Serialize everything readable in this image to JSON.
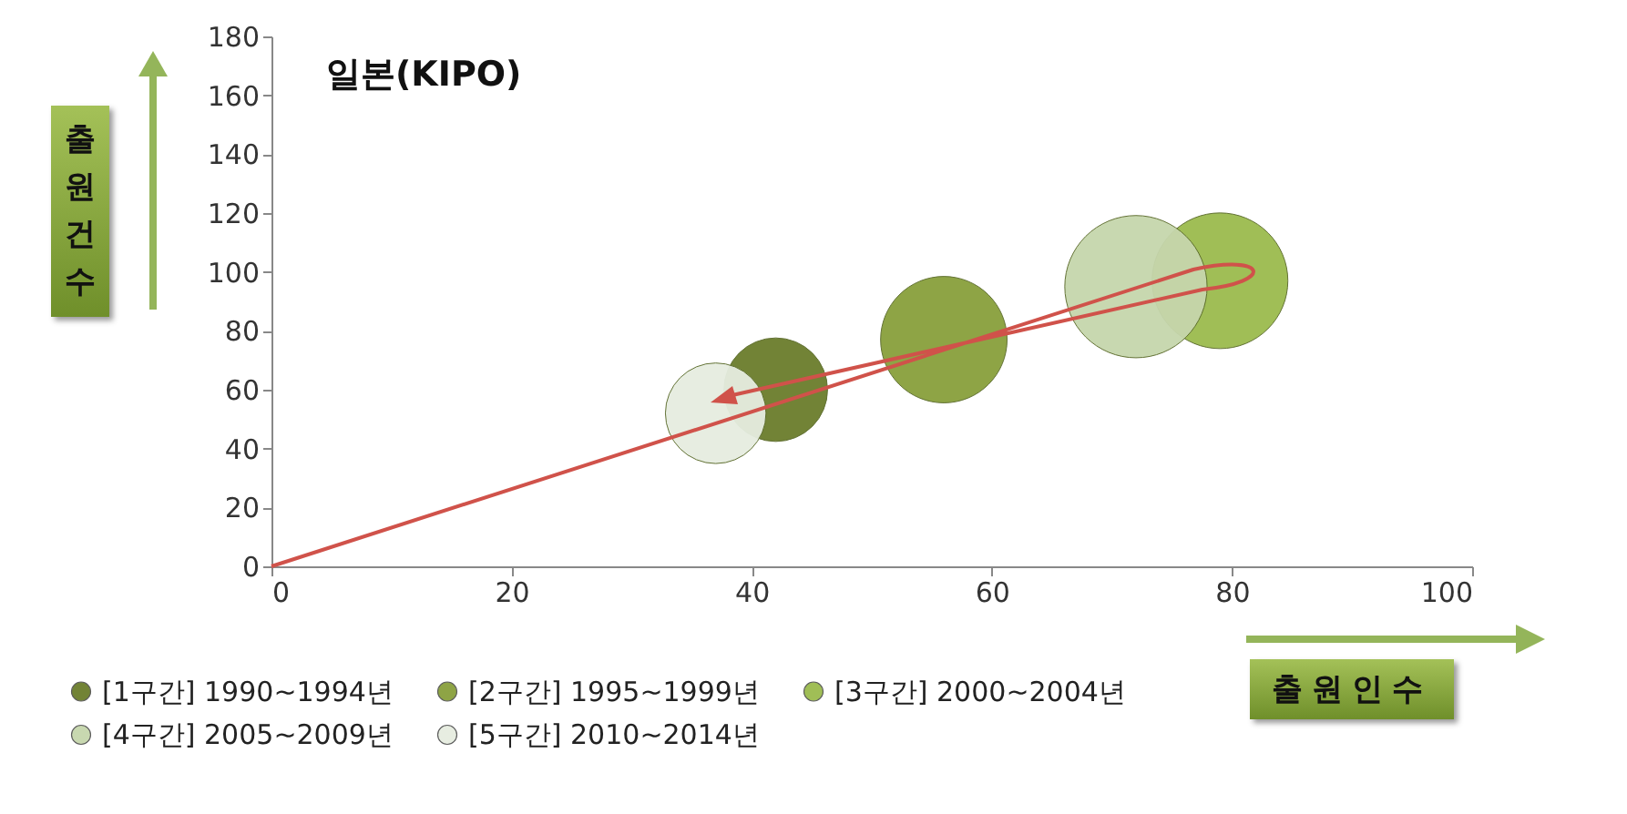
{
  "chart_data": {
    "type": "bubble",
    "title": "일본(KIPO)",
    "xlabel": "출원인수",
    "ylabel": "출원건수",
    "xlim": [
      0,
      100
    ],
    "xticks": [
      0,
      20,
      40,
      60,
      80,
      100
    ],
    "ylim": [
      0,
      180
    ],
    "yticks": [
      0,
      20,
      40,
      60,
      80,
      100,
      120,
      140,
      160,
      180
    ],
    "grid": false,
    "legend": "bottom",
    "series": [
      {
        "name": "[1구간] 1990~1994년",
        "color": "#6b7d2c",
        "x": [
          42
        ],
        "values": [
          60
        ],
        "sizes": [
          0.53
        ]
      },
      {
        "name": "[2구간] 1995~1999년",
        "color": "#88a03c",
        "x": [
          56
        ],
        "values": [
          77
        ],
        "sizes": [
          0.79
        ]
      },
      {
        "name": "[3구간] 2000~2004년",
        "color": "#9bbb4e",
        "x": [
          79
        ],
        "values": [
          97
        ],
        "sizes": [
          0.91
        ]
      },
      {
        "name": "[4구간] 2005~2009년",
        "color": "#c6d6ac",
        "x": [
          72
        ],
        "values": [
          95
        ],
        "sizes": [
          1
        ]
      },
      {
        "name": "[5구간] 2010~2014년",
        "color": "#e6ede0",
        "x": [
          37
        ],
        "values": [
          52
        ],
        "sizes": [
          0.5
        ]
      }
    ]
  }
}
